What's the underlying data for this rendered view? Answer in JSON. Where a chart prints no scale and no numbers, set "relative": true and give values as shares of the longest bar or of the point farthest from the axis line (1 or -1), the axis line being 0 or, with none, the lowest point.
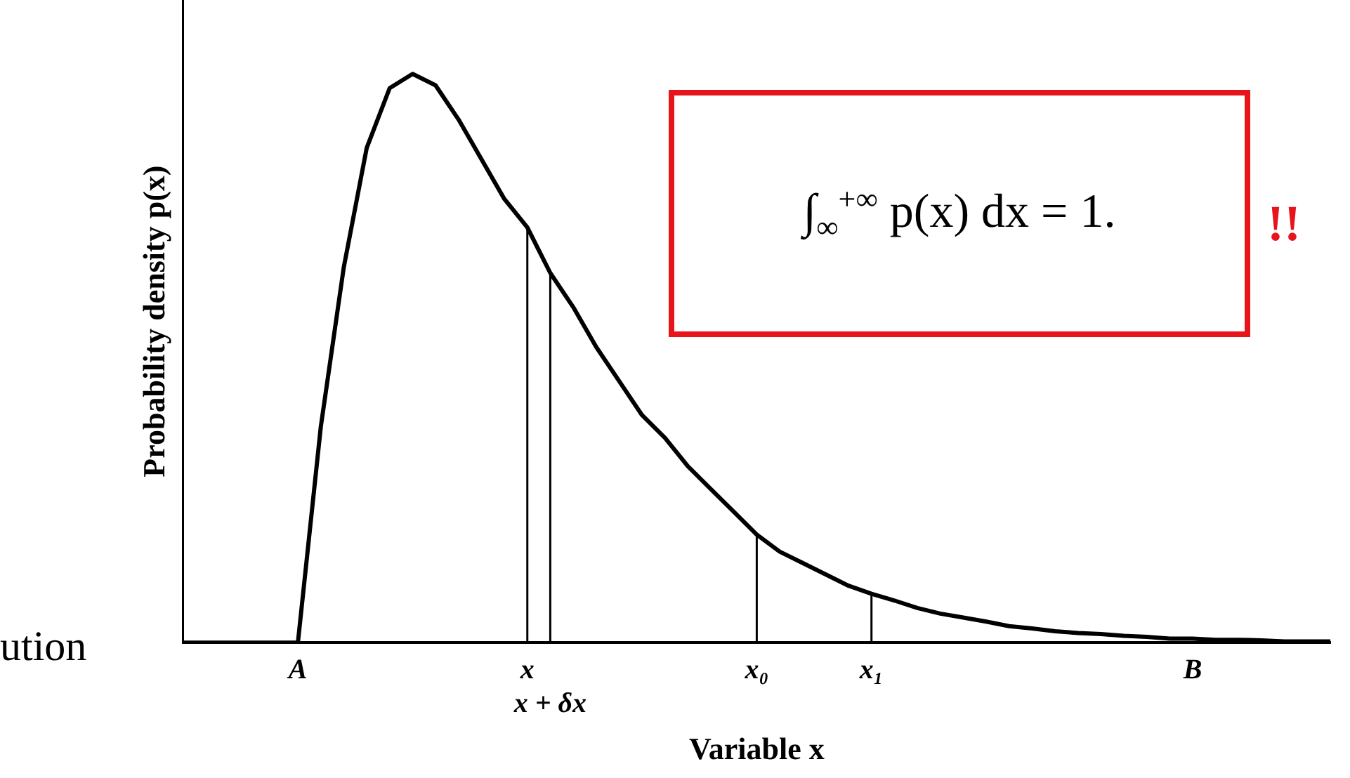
{
  "chart_data": {
    "type": "line",
    "relative": true,
    "xlabel": "Variable x",
    "ylabel": "Probability density p(x)",
    "categories": [
      null,
      null,
      null,
      null,
      null,
      "A",
      null,
      null,
      null,
      null,
      null,
      null,
      null,
      null,
      null,
      "x",
      "x + δx",
      null,
      null,
      null,
      null,
      null,
      null,
      null,
      null,
      "x₀",
      null,
      null,
      null,
      null,
      "x₁",
      null,
      null,
      null,
      null,
      null,
      null,
      null,
      null,
      null,
      null,
      null,
      null,
      null,
      "B",
      null,
      null,
      null,
      null,
      null,
      null
    ],
    "series": [
      {
        "color": "#000000",
        "values": [
          0,
          0,
          0,
          0,
          0,
          0,
          0.38,
          0.66,
          0.87,
          0.975,
          1,
          0.98,
          0.92,
          0.85,
          0.78,
          0.73,
          0.65,
          0.59,
          0.52,
          0.46,
          0.4,
          0.36,
          0.31,
          0.27,
          0.23,
          0.19,
          0.16,
          0.14,
          0.12,
          0.1,
          0.086,
          0.074,
          0.061,
          0.051,
          0.044,
          0.037,
          0.029,
          0.025,
          0.02,
          0.017,
          0.015,
          0.012,
          0.01,
          0.007,
          0.007,
          0.005,
          0.005,
          0.004,
          0.002,
          0.002,
          0.002
        ]
      }
    ],
    "ref_lines": [
      {
        "axis": "x",
        "value": "x",
        "color": "#000000"
      },
      {
        "axis": "x",
        "value": "x + δx",
        "color": "#000000"
      },
      {
        "axis": "x",
        "value": "x₀",
        "color": "#000000"
      },
      {
        "axis": "x",
        "value": "x₁",
        "color": "#000000"
      }
    ],
    "annotations": [
      "∫$_{∞}$$^{+∞}$ p(x) dx = 1.",
      "!!",
      "ution"
    ],
    "legend": false,
    "grid": false,
    "marker": "none",
    "line_style": "solid"
  }
}
